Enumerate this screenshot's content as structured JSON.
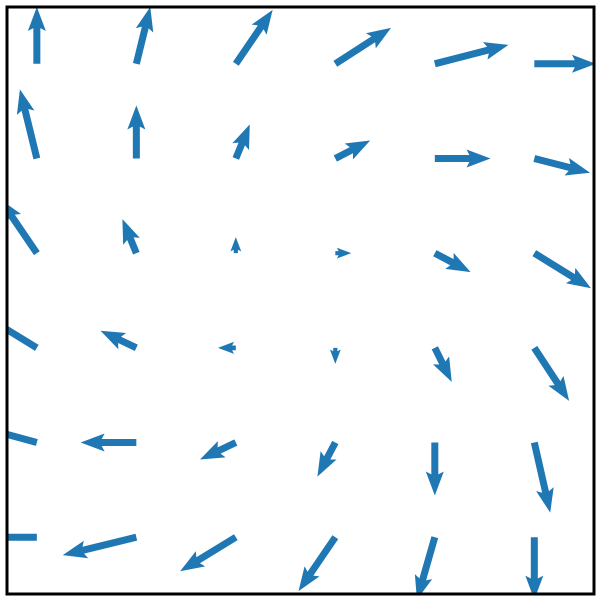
{
  "chart_data": {
    "type": "quiver",
    "title": "",
    "xlabel": "",
    "ylabel": "",
    "xlim": [
      -0.3,
      5.6
    ],
    "ylim": [
      -0.6,
      5.6
    ],
    "grid": false,
    "legend": "none",
    "arrow_color": "#1f77b4",
    "frame_color": "#000000",
    "x_values": [
      0,
      1,
      2,
      3,
      4,
      5
    ],
    "y_values": [
      0,
      1,
      2,
      3,
      4,
      5
    ],
    "vectors": [
      {
        "x": 0,
        "y": 5,
        "u": 0.0,
        "v": 0.6
      },
      {
        "x": 1,
        "y": 5,
        "u": 0.14,
        "v": 0.6
      },
      {
        "x": 2,
        "y": 5,
        "u": 0.37,
        "v": 0.57
      },
      {
        "x": 3,
        "y": 5,
        "u": 0.56,
        "v": 0.38
      },
      {
        "x": 4,
        "y": 5,
        "u": 0.74,
        "v": 0.2
      },
      {
        "x": 5,
        "y": 5,
        "u": 0.62,
        "v": 0.0
      },
      {
        "x": 0,
        "y": 4,
        "u": -0.17,
        "v": 0.73
      },
      {
        "x": 1,
        "y": 4,
        "u": 0.0,
        "v": 0.56
      },
      {
        "x": 2,
        "y": 4,
        "u": 0.14,
        "v": 0.36
      },
      {
        "x": 3,
        "y": 4,
        "u": 0.35,
        "v": 0.19
      },
      {
        "x": 4,
        "y": 4,
        "u": 0.56,
        "v": 0.0
      },
      {
        "x": 5,
        "y": 4,
        "u": 0.56,
        "v": -0.15
      },
      {
        "x": 0,
        "y": 3,
        "u": -0.37,
        "v": 0.57
      },
      {
        "x": 1,
        "y": 3,
        "u": -0.14,
        "v": 0.36
      },
      {
        "x": 2,
        "y": 3,
        "u": 0.0,
        "v": 0.17
      },
      {
        "x": 3,
        "y": 3,
        "u": 0.16,
        "v": 0.0
      },
      {
        "x": 4,
        "y": 3,
        "u": 0.36,
        "v": -0.2
      },
      {
        "x": 5,
        "y": 3,
        "u": 0.57,
        "v": -0.37
      },
      {
        "x": 0,
        "y": 2,
        "u": -0.56,
        "v": 0.36
      },
      {
        "x": 1,
        "y": 2,
        "u": -0.36,
        "v": 0.18
      },
      {
        "x": 2,
        "y": 2,
        "u": -0.18,
        "v": 0.0
      },
      {
        "x": 3,
        "y": 2,
        "u": 0.0,
        "v": -0.17
      },
      {
        "x": 4,
        "y": 2,
        "u": 0.17,
        "v": -0.36
      },
      {
        "x": 5,
        "y": 2,
        "u": 0.35,
        "v": -0.56
      },
      {
        "x": 0,
        "y": 1,
        "u": -0.56,
        "v": 0.16
      },
      {
        "x": 1,
        "y": 1,
        "u": -0.56,
        "v": 0.0
      },
      {
        "x": 2,
        "y": 1,
        "u": -0.36,
        "v": -0.18
      },
      {
        "x": 3,
        "y": 1,
        "u": -0.18,
        "v": -0.36
      },
      {
        "x": 4,
        "y": 1,
        "u": 0.0,
        "v": -0.56
      },
      {
        "x": 5,
        "y": 1,
        "u": 0.16,
        "v": -0.74
      },
      {
        "x": 0,
        "y": 0,
        "u": -0.6,
        "v": 0.0
      },
      {
        "x": 1,
        "y": 0,
        "u": -0.74,
        "v": -0.19
      },
      {
        "x": 2,
        "y": 0,
        "u": -0.56,
        "v": -0.36
      },
      {
        "x": 3,
        "y": 0,
        "u": -0.37,
        "v": -0.57
      },
      {
        "x": 4,
        "y": 0,
        "u": -0.18,
        "v": -0.66
      },
      {
        "x": 5,
        "y": 0,
        "u": 0.0,
        "v": -0.66
      }
    ]
  }
}
